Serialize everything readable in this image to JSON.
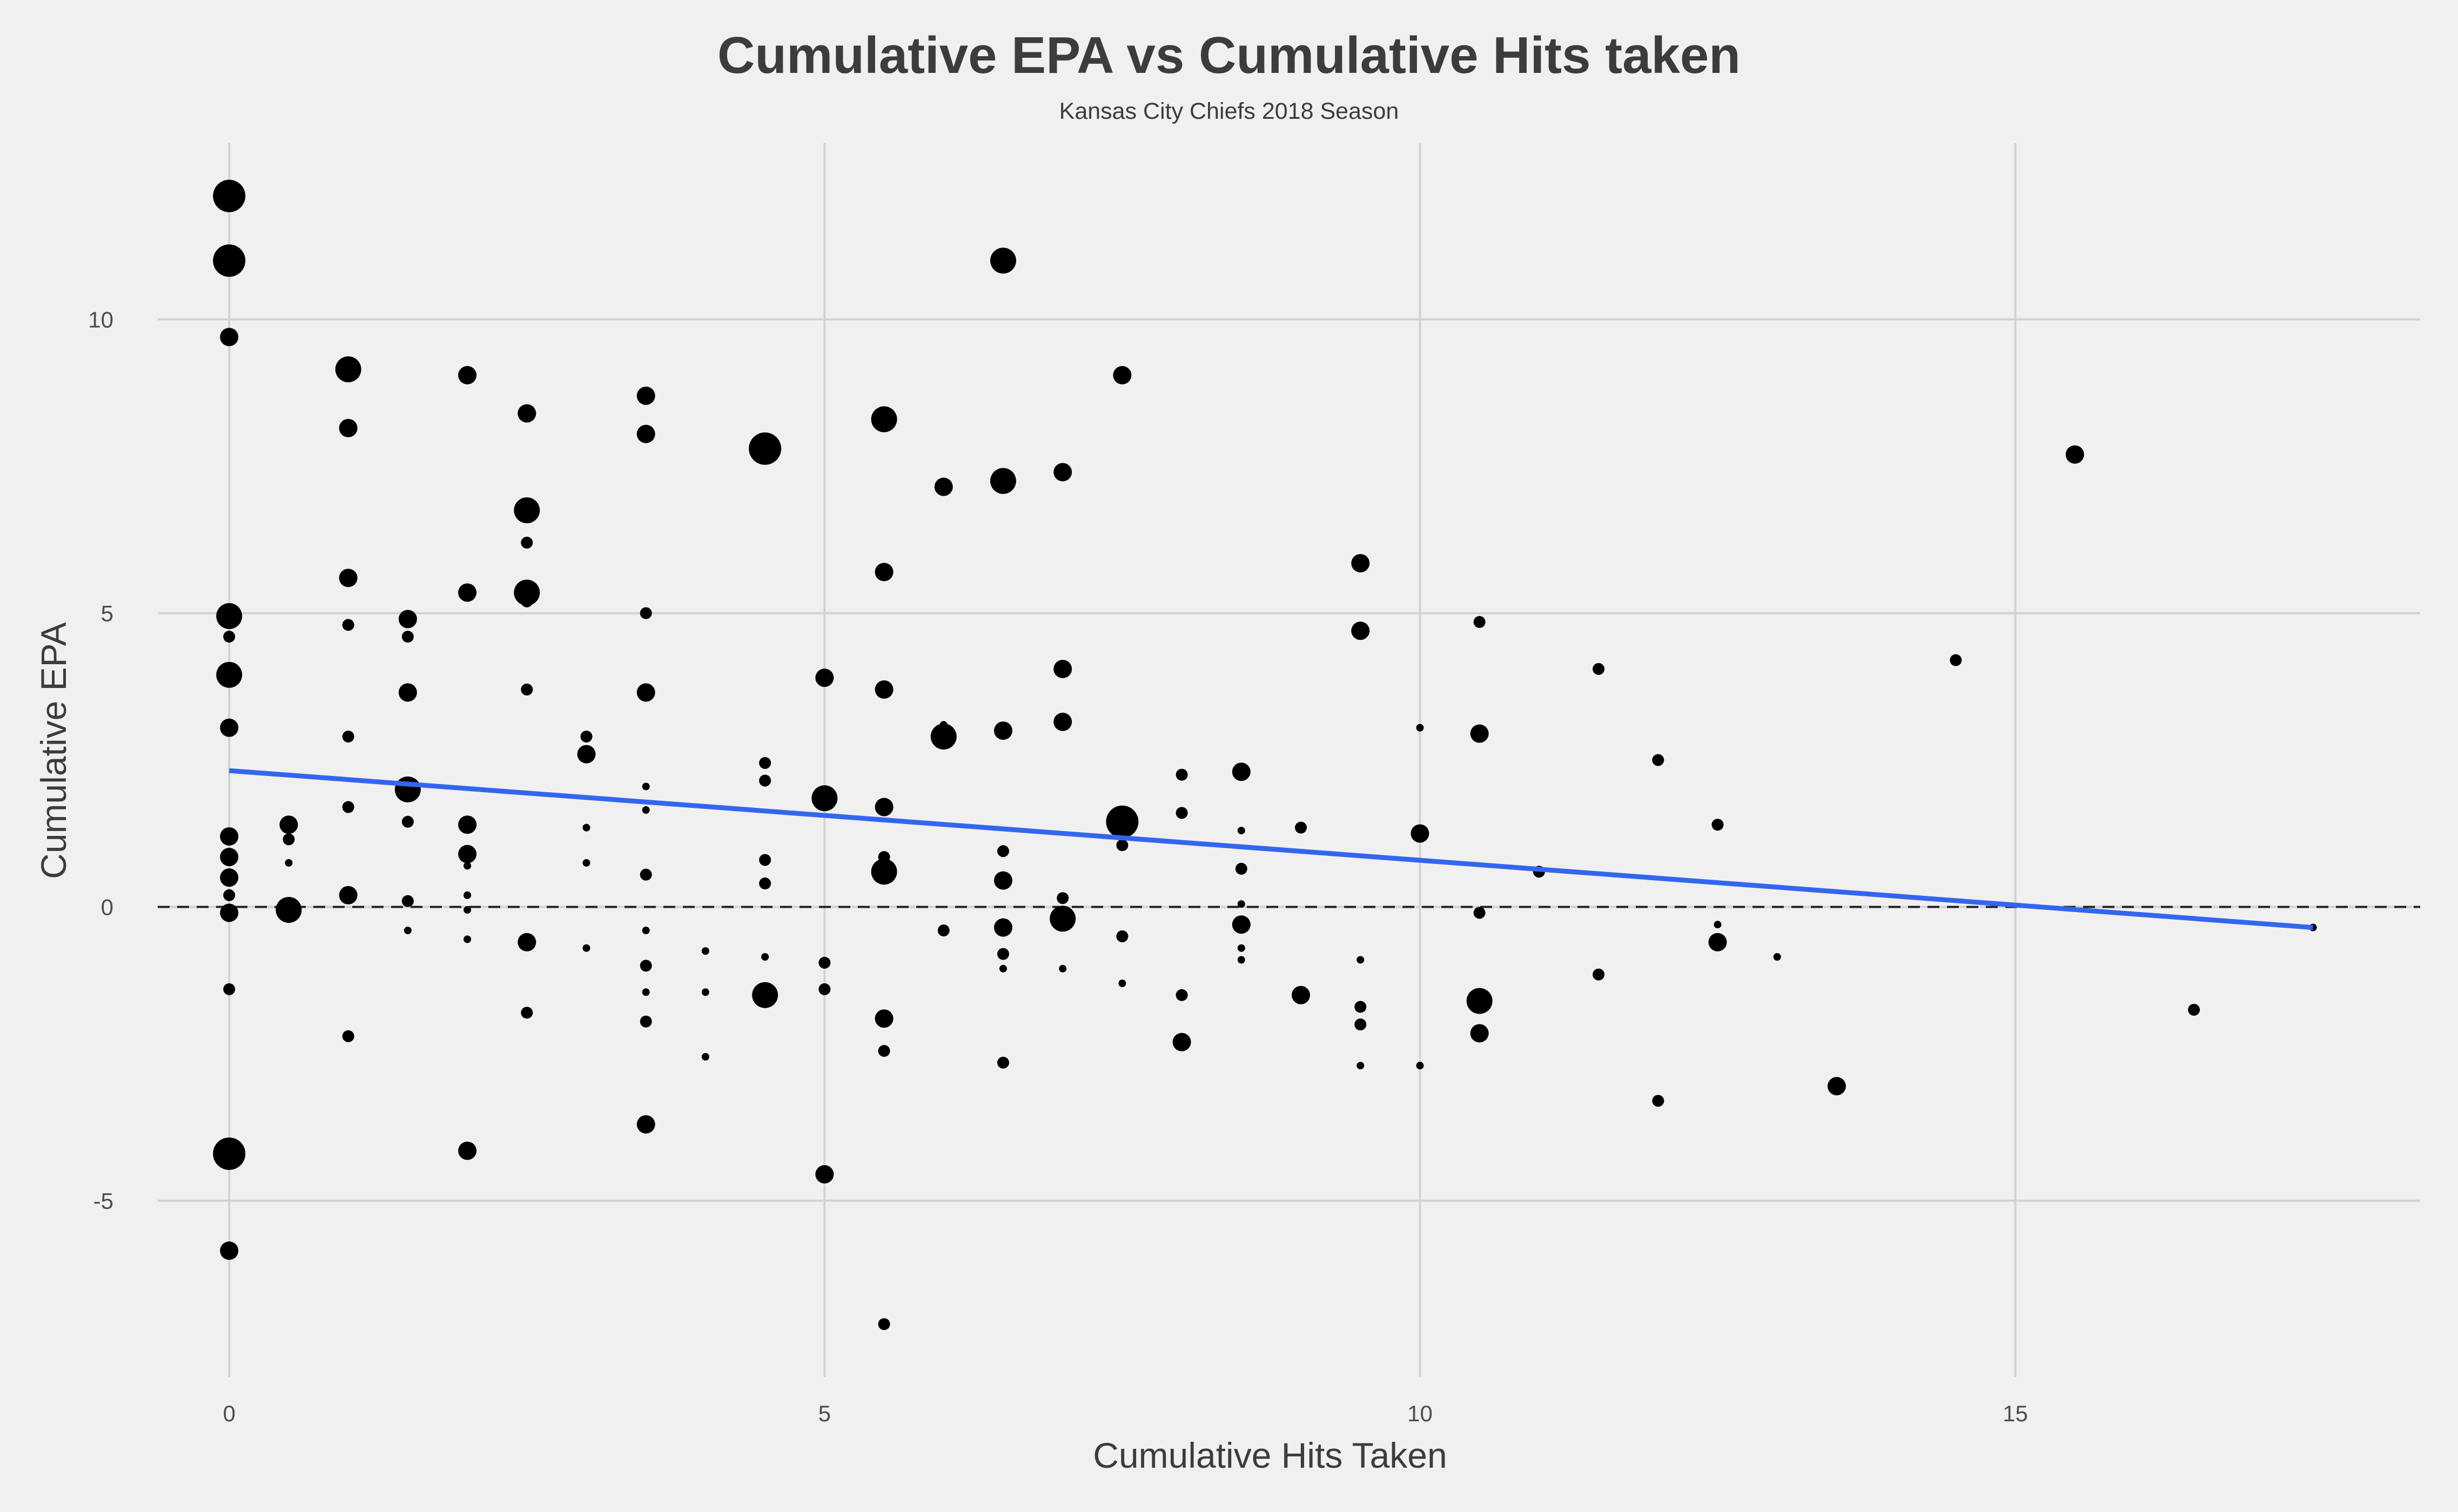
{
  "chart_data": {
    "type": "scatter",
    "title": "Cumulative EPA vs Cumulative Hits taken",
    "subtitle": "Kansas City Chiefs 2018 Season",
    "xlabel": "Cumulative Hits Taken",
    "ylabel": "Cumulative EPA",
    "xlim": [
      -0.6,
      18.4
    ],
    "ylim": [
      -8.0,
      13.0
    ],
    "x_ticks": [
      0,
      5,
      10,
      15
    ],
    "y_ticks": [
      -5,
      0,
      5,
      10
    ],
    "grid": true,
    "reference_line": {
      "y": 0,
      "style": "dashed"
    },
    "trend_line": {
      "x": [
        0,
        17.5
      ],
      "y": [
        2.32,
        -0.35
      ],
      "color": "#3366ee"
    },
    "point_sizes": {
      "xs": 7,
      "s": 11,
      "m": 17,
      "l": 24,
      "xl": 30
    },
    "points": [
      {
        "x": 0,
        "y": 12.1,
        "s": "xl"
      },
      {
        "x": 0,
        "y": 11.0,
        "s": "xl"
      },
      {
        "x": 0,
        "y": 9.7,
        "s": "m"
      },
      {
        "x": 0,
        "y": 4.95,
        "s": "l"
      },
      {
        "x": 0,
        "y": 4.6,
        "s": "s"
      },
      {
        "x": 0,
        "y": 3.95,
        "s": "l"
      },
      {
        "x": 0,
        "y": 3.05,
        "s": "m"
      },
      {
        "x": 0,
        "y": 1.2,
        "s": "m"
      },
      {
        "x": 0,
        "y": 0.85,
        "s": "m"
      },
      {
        "x": 0,
        "y": 0.5,
        "s": "m"
      },
      {
        "x": 0,
        "y": 0.2,
        "s": "s"
      },
      {
        "x": 0,
        "y": -0.1,
        "s": "m"
      },
      {
        "x": 0,
        "y": -1.4,
        "s": "s"
      },
      {
        "x": 0,
        "y": -4.2,
        "s": "xl"
      },
      {
        "x": 0,
        "y": -5.85,
        "s": "m"
      },
      {
        "x": 0.5,
        "y": 1.4,
        "s": "m"
      },
      {
        "x": 0.5,
        "y": 1.15,
        "s": "s"
      },
      {
        "x": 0.5,
        "y": 0.75,
        "s": "xs"
      },
      {
        "x": 0.5,
        "y": -0.05,
        "s": "l"
      },
      {
        "x": 1,
        "y": 9.15,
        "s": "l"
      },
      {
        "x": 1,
        "y": 8.15,
        "s": "m"
      },
      {
        "x": 1,
        "y": 5.6,
        "s": "m"
      },
      {
        "x": 1,
        "y": 4.8,
        "s": "s"
      },
      {
        "x": 1,
        "y": 2.9,
        "s": "s"
      },
      {
        "x": 1,
        "y": 1.7,
        "s": "s"
      },
      {
        "x": 1,
        "y": 0.2,
        "s": "m"
      },
      {
        "x": 1,
        "y": -2.2,
        "s": "s"
      },
      {
        "x": 1.5,
        "y": 4.9,
        "s": "m"
      },
      {
        "x": 1.5,
        "y": 4.6,
        "s": "s"
      },
      {
        "x": 1.5,
        "y": 3.65,
        "s": "m"
      },
      {
        "x": 1.5,
        "y": 2.0,
        "s": "l"
      },
      {
        "x": 1.5,
        "y": 1.45,
        "s": "s"
      },
      {
        "x": 1.5,
        "y": 0.1,
        "s": "s"
      },
      {
        "x": 1.5,
        "y": -0.4,
        "s": "xs"
      },
      {
        "x": 2,
        "y": 9.05,
        "s": "m"
      },
      {
        "x": 2,
        "y": 5.35,
        "s": "m"
      },
      {
        "x": 2,
        "y": 1.4,
        "s": "m"
      },
      {
        "x": 2,
        "y": 0.9,
        "s": "m"
      },
      {
        "x": 2,
        "y": 0.7,
        "s": "xs"
      },
      {
        "x": 2,
        "y": 0.2,
        "s": "xs"
      },
      {
        "x": 2,
        "y": -0.05,
        "s": "xs"
      },
      {
        "x": 2,
        "y": -0.55,
        "s": "xs"
      },
      {
        "x": 2,
        "y": -4.15,
        "s": "m"
      },
      {
        "x": 2.5,
        "y": 8.4,
        "s": "m"
      },
      {
        "x": 2.5,
        "y": 6.75,
        "s": "l"
      },
      {
        "x": 2.5,
        "y": 6.2,
        "s": "s"
      },
      {
        "x": 2.5,
        "y": 5.35,
        "s": "l"
      },
      {
        "x": 2.5,
        "y": 5.2,
        "s": "s"
      },
      {
        "x": 2.5,
        "y": 3.7,
        "s": "s"
      },
      {
        "x": 2.5,
        "y": -0.6,
        "s": "m"
      },
      {
        "x": 2.5,
        "y": -1.8,
        "s": "s"
      },
      {
        "x": 3,
        "y": 2.9,
        "s": "s"
      },
      {
        "x": 3,
        "y": 2.6,
        "s": "m"
      },
      {
        "x": 3,
        "y": 1.35,
        "s": "xs"
      },
      {
        "x": 3,
        "y": 0.75,
        "s": "xs"
      },
      {
        "x": 3,
        "y": -0.7,
        "s": "xs"
      },
      {
        "x": 3.5,
        "y": 8.7,
        "s": "m"
      },
      {
        "x": 3.5,
        "y": 8.05,
        "s": "m"
      },
      {
        "x": 3.5,
        "y": 5.0,
        "s": "s"
      },
      {
        "x": 3.5,
        "y": 3.65,
        "s": "m"
      },
      {
        "x": 3.5,
        "y": 2.05,
        "s": "xs"
      },
      {
        "x": 3.5,
        "y": 1.65,
        "s": "xs"
      },
      {
        "x": 3.5,
        "y": 0.55,
        "s": "s"
      },
      {
        "x": 3.5,
        "y": -0.4,
        "s": "xs"
      },
      {
        "x": 3.5,
        "y": -1.0,
        "s": "s"
      },
      {
        "x": 3.5,
        "y": -1.45,
        "s": "xs"
      },
      {
        "x": 3.5,
        "y": -1.95,
        "s": "s"
      },
      {
        "x": 3.5,
        "y": -3.7,
        "s": "m"
      },
      {
        "x": 4,
        "y": -0.75,
        "s": "xs"
      },
      {
        "x": 4,
        "y": -1.45,
        "s": "xs"
      },
      {
        "x": 4,
        "y": -2.55,
        "s": "xs"
      },
      {
        "x": 4.5,
        "y": 7.8,
        "s": "xl"
      },
      {
        "x": 4.5,
        "y": 2.45,
        "s": "s"
      },
      {
        "x": 4.5,
        "y": 2.15,
        "s": "s"
      },
      {
        "x": 4.5,
        "y": 0.8,
        "s": "s"
      },
      {
        "x": 4.5,
        "y": 0.4,
        "s": "s"
      },
      {
        "x": 4.5,
        "y": -0.85,
        "s": "xs"
      },
      {
        "x": 4.5,
        "y": -1.5,
        "s": "l"
      },
      {
        "x": 5,
        "y": 3.9,
        "s": "m"
      },
      {
        "x": 5,
        "y": 1.85,
        "s": "l"
      },
      {
        "x": 5,
        "y": -0.95,
        "s": "s"
      },
      {
        "x": 5,
        "y": -1.4,
        "s": "s"
      },
      {
        "x": 5,
        "y": -4.55,
        "s": "m"
      },
      {
        "x": 5.5,
        "y": 8.3,
        "s": "l"
      },
      {
        "x": 5.5,
        "y": 5.7,
        "s": "m"
      },
      {
        "x": 5.5,
        "y": 3.7,
        "s": "m"
      },
      {
        "x": 5.5,
        "y": 1.7,
        "s": "m"
      },
      {
        "x": 5.5,
        "y": 0.85,
        "s": "s"
      },
      {
        "x": 5.5,
        "y": 0.6,
        "s": "l"
      },
      {
        "x": 5.5,
        "y": -1.9,
        "s": "m"
      },
      {
        "x": 5.5,
        "y": -2.45,
        "s": "s"
      },
      {
        "x": 5.5,
        "y": -7.1,
        "s": "s"
      },
      {
        "x": 6,
        "y": 7.15,
        "s": "m"
      },
      {
        "x": 6,
        "y": 3.1,
        "s": "xs"
      },
      {
        "x": 6,
        "y": 2.9,
        "s": "l"
      },
      {
        "x": 6,
        "y": -0.4,
        "s": "s"
      },
      {
        "x": 6.5,
        "y": 11.0,
        "s": "l"
      },
      {
        "x": 6.5,
        "y": 7.25,
        "s": "l"
      },
      {
        "x": 6.5,
        "y": 3.0,
        "s": "m"
      },
      {
        "x": 6.5,
        "y": 0.95,
        "s": "s"
      },
      {
        "x": 6.5,
        "y": 0.45,
        "s": "m"
      },
      {
        "x": 6.5,
        "y": -0.35,
        "s": "m"
      },
      {
        "x": 6.5,
        "y": -0.8,
        "s": "s"
      },
      {
        "x": 6.5,
        "y": -1.05,
        "s": "xs"
      },
      {
        "x": 6.5,
        "y": -2.65,
        "s": "s"
      },
      {
        "x": 7,
        "y": 7.4,
        "s": "m"
      },
      {
        "x": 7,
        "y": 4.05,
        "s": "m"
      },
      {
        "x": 7,
        "y": 3.15,
        "s": "m"
      },
      {
        "x": 7,
        "y": 0.15,
        "s": "s"
      },
      {
        "x": 7,
        "y": -0.2,
        "s": "l"
      },
      {
        "x": 7,
        "y": -1.05,
        "s": "xs"
      },
      {
        "x": 7.5,
        "y": 9.05,
        "s": "m"
      },
      {
        "x": 7.5,
        "y": 1.45,
        "s": "xl"
      },
      {
        "x": 7.5,
        "y": 1.05,
        "s": "s"
      },
      {
        "x": 7.5,
        "y": -0.5,
        "s": "s"
      },
      {
        "x": 7.5,
        "y": -1.3,
        "s": "xs"
      },
      {
        "x": 8,
        "y": 2.25,
        "s": "s"
      },
      {
        "x": 8,
        "y": 1.6,
        "s": "s"
      },
      {
        "x": 8,
        "y": -1.5,
        "s": "s"
      },
      {
        "x": 8,
        "y": -2.3,
        "s": "m"
      },
      {
        "x": 8.5,
        "y": 2.3,
        "s": "m"
      },
      {
        "x": 8.5,
        "y": 1.3,
        "s": "xs"
      },
      {
        "x": 8.5,
        "y": 0.65,
        "s": "s"
      },
      {
        "x": 8.5,
        "y": 0.05,
        "s": "xs"
      },
      {
        "x": 8.5,
        "y": -0.3,
        "s": "m"
      },
      {
        "x": 8.5,
        "y": -0.7,
        "s": "xs"
      },
      {
        "x": 8.5,
        "y": -0.9,
        "s": "xs"
      },
      {
        "x": 9,
        "y": 1.35,
        "s": "s"
      },
      {
        "x": 9,
        "y": -1.5,
        "s": "m"
      },
      {
        "x": 9.5,
        "y": 5.85,
        "s": "m"
      },
      {
        "x": 9.5,
        "y": 4.7,
        "s": "m"
      },
      {
        "x": 9.5,
        "y": -0.9,
        "s": "xs"
      },
      {
        "x": 9.5,
        "y": -1.7,
        "s": "s"
      },
      {
        "x": 9.5,
        "y": -2.0,
        "s": "s"
      },
      {
        "x": 9.5,
        "y": -2.7,
        "s": "xs"
      },
      {
        "x": 10,
        "y": 3.05,
        "s": "xs"
      },
      {
        "x": 10,
        "y": 1.25,
        "s": "m"
      },
      {
        "x": 10,
        "y": -2.7,
        "s": "xs"
      },
      {
        "x": 10.5,
        "y": 4.85,
        "s": "s"
      },
      {
        "x": 10.5,
        "y": 2.95,
        "s": "m"
      },
      {
        "x": 10.5,
        "y": -0.1,
        "s": "s"
      },
      {
        "x": 10.5,
        "y": -1.6,
        "s": "l"
      },
      {
        "x": 10.5,
        "y": -2.15,
        "s": "m"
      },
      {
        "x": 11,
        "y": 0.6,
        "s": "s"
      },
      {
        "x": 11.5,
        "y": 4.05,
        "s": "s"
      },
      {
        "x": 11.5,
        "y": -1.15,
        "s": "s"
      },
      {
        "x": 12,
        "y": 2.5,
        "s": "s"
      },
      {
        "x": 12,
        "y": -3.3,
        "s": "s"
      },
      {
        "x": 12.5,
        "y": 1.4,
        "s": "s"
      },
      {
        "x": 12.5,
        "y": -0.3,
        "s": "xs"
      },
      {
        "x": 12.5,
        "y": -0.6,
        "s": "m"
      },
      {
        "x": 13,
        "y": -0.85,
        "s": "xs"
      },
      {
        "x": 13.5,
        "y": -3.05,
        "s": "m"
      },
      {
        "x": 14.5,
        "y": 4.2,
        "s": "s"
      },
      {
        "x": 15.5,
        "y": 7.7,
        "s": "m"
      },
      {
        "x": 16.5,
        "y": -1.75,
        "s": "s"
      },
      {
        "x": 17.5,
        "y": -0.35,
        "s": "xs"
      }
    ]
  }
}
